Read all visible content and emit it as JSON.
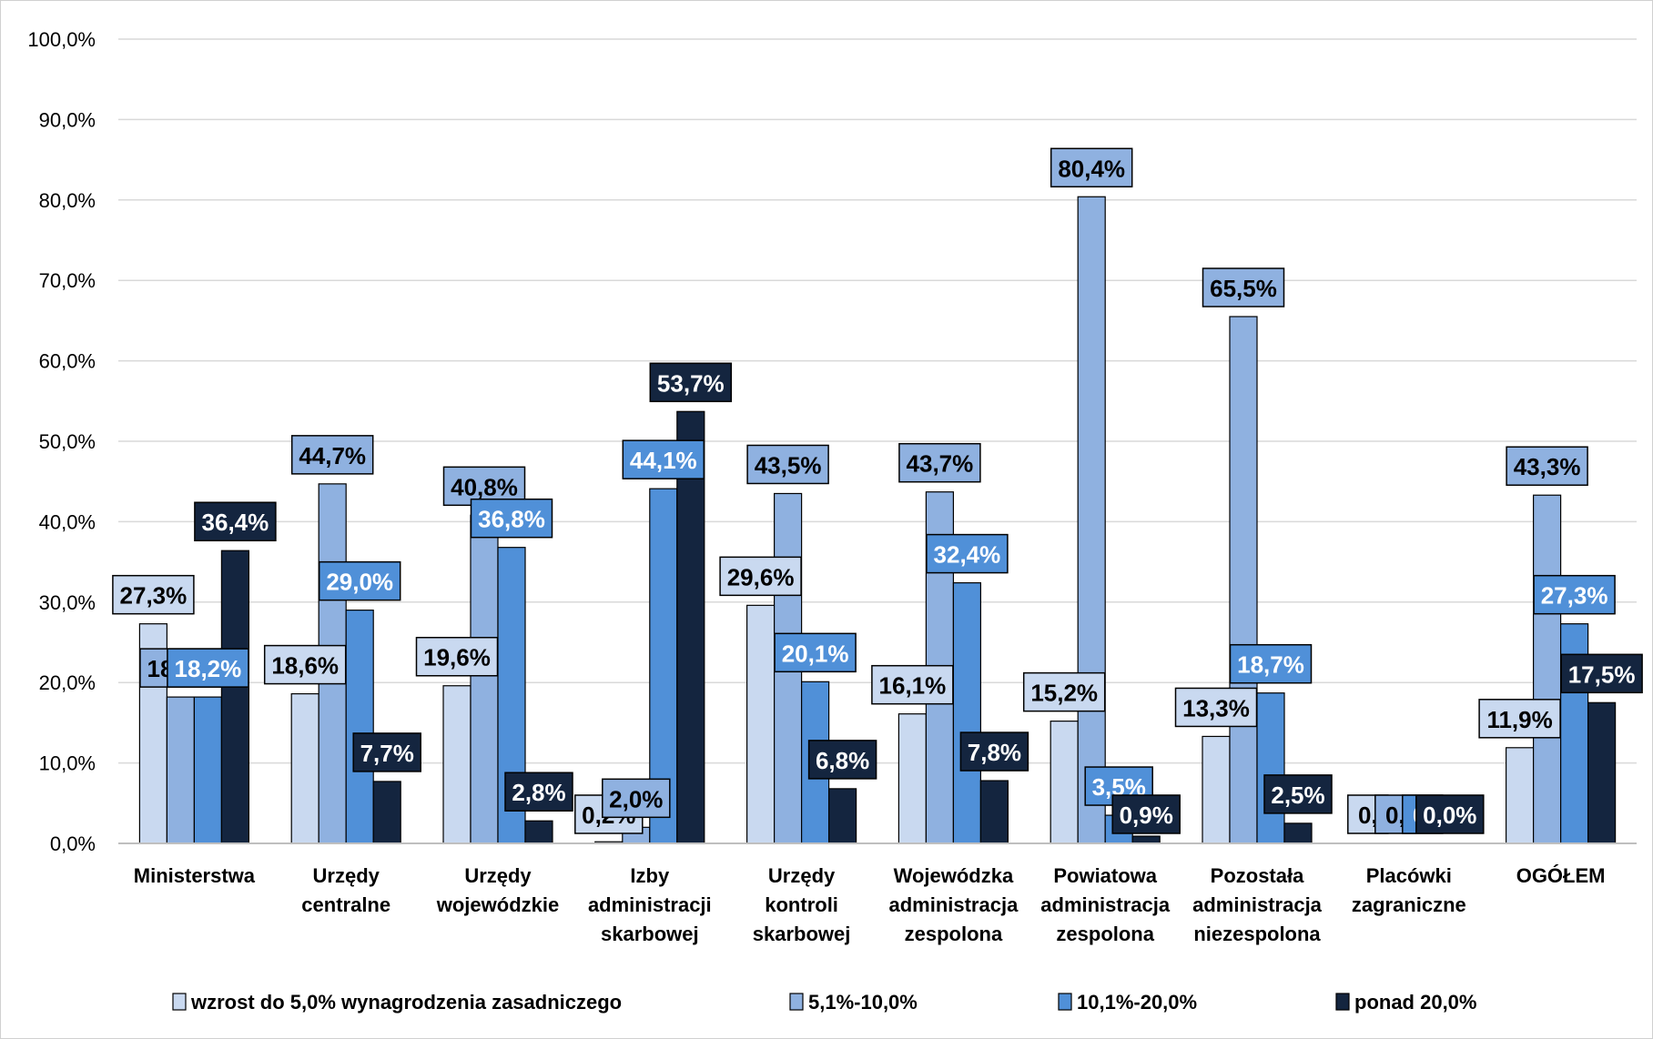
{
  "chart_data": {
    "type": "bar",
    "categories": [
      [
        "Ministerstwa"
      ],
      [
        "Urzędy",
        "centralne"
      ],
      [
        "Urzędy",
        "wojewódzkie"
      ],
      [
        "Izby",
        "administracji",
        "skarbowej"
      ],
      [
        "Urzędy",
        "kontroli",
        "skarbowej"
      ],
      [
        "Wojewódzka",
        "administracja",
        "zespolona"
      ],
      [
        "Powiatowa",
        "administracja",
        "zespolona"
      ],
      [
        "Pozostała",
        "administracja",
        "niezespolona"
      ],
      [
        "Placówki",
        "zagraniczne"
      ],
      [
        "OGÓŁEM"
      ]
    ],
    "series": [
      {
        "name": "wzrost do 5,0% wynagrodzenia zasadniczego",
        "color": "#C9D9F0",
        "label_color": "#000000",
        "values": [
          27.3,
          18.6,
          19.6,
          0.2,
          29.6,
          16.1,
          15.2,
          13.3,
          0.0,
          11.9
        ],
        "labels": [
          "27,3%",
          "18,6%",
          "19,6%",
          "0,2%",
          "29,6%",
          "16,1%",
          "15,2%",
          "13,3%",
          "0,",
          "11,9%"
        ]
      },
      {
        "name": "5,1%-10,0%",
        "color": "#8FB1E0",
        "label_color": "#000000",
        "values": [
          18.2,
          44.7,
          40.8,
          2.0,
          43.5,
          43.7,
          80.4,
          65.5,
          0.0,
          43.3
        ],
        "labels": [
          "18,2%",
          "44,7%",
          "40,8%",
          "2,0%",
          "43,5%",
          "43,7%",
          "80,4%",
          "65,5%",
          "0,",
          "43,3%"
        ]
      },
      {
        "name": "10,1%-20,0%",
        "color": "#5090D8",
        "label_color": "#ffffff",
        "values": [
          18.2,
          29.0,
          36.8,
          44.1,
          20.1,
          32.4,
          3.5,
          18.7,
          0.0,
          27.3
        ],
        "labels": [
          "18,2%",
          "29,0%",
          "36,8%",
          "44,1%",
          "20,1%",
          "32,4%",
          "3,5%",
          "18,7%",
          "0,",
          "27,3%"
        ]
      },
      {
        "name": "ponad 20,0%",
        "color": "#14253F",
        "label_color": "#ffffff",
        "values": [
          36.4,
          7.7,
          2.8,
          53.7,
          6.8,
          7.8,
          0.9,
          2.5,
          0.0,
          17.5
        ],
        "labels": [
          "36,4%",
          "7,7%",
          "2,8%",
          "53,7%",
          "6,8%",
          "7,8%",
          "0,9%",
          "2,5%",
          "0,0%",
          "17,5%"
        ]
      }
    ],
    "yticks": [
      "0,0%",
      "10,0%",
      "20,0%",
      "30,0%",
      "40,0%",
      "50,0%",
      "60,0%",
      "70,0%",
      "80,0%",
      "90,0%",
      "100,0%"
    ],
    "ylim": [
      0,
      100
    ],
    "grid": true,
    "legend_position": "bottom",
    "title": "",
    "xlabel": "",
    "ylabel": ""
  }
}
